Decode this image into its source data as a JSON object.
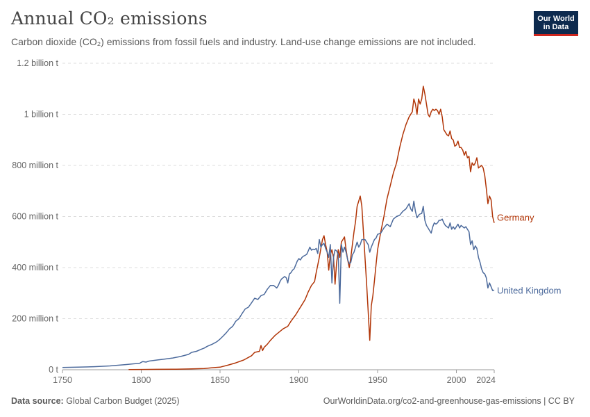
{
  "header": {
    "title": "Annual CO₂ emissions",
    "subtitle": "Carbon dioxide (CO₂) emissions from fossil fuels and industry. Land-use change emissions are not included.",
    "logo_line1": "Our World",
    "logo_line2": "in Data"
  },
  "footer": {
    "source_label": "Data source:",
    "source_value": "Global Carbon Budget (2025)",
    "url": "OurWorldinData.org/co2-and-greenhouse-gas-emissions | CC BY"
  },
  "chart_data": {
    "type": "line",
    "x_ticks": [
      1750,
      1800,
      1850,
      1900,
      1950,
      2000,
      2024
    ],
    "y_ticks": [
      0,
      200000000,
      400000000,
      600000000,
      800000000,
      1000000000,
      1200000000
    ],
    "y_tick_labels": [
      "0 t",
      "200 million t",
      "400 million t",
      "600 million t",
      "800 million t",
      "1 billion t",
      "1.2 billion t"
    ],
    "xlim": [
      1750,
      2024
    ],
    "ylim": [
      0,
      1200000000
    ],
    "grid": "horizontal dashed",
    "series": [
      {
        "name": "Germany",
        "color": "#b13507",
        "points": [
          [
            1792,
            0.5
          ],
          [
            1800,
            1
          ],
          [
            1810,
            1.5
          ],
          [
            1820,
            2
          ],
          [
            1830,
            3
          ],
          [
            1840,
            5
          ],
          [
            1845,
            8
          ],
          [
            1850,
            10
          ],
          [
            1855,
            18
          ],
          [
            1860,
            27
          ],
          [
            1865,
            38
          ],
          [
            1870,
            55
          ],
          [
            1872,
            68
          ],
          [
            1875,
            72
          ],
          [
            1876,
            95
          ],
          [
            1877,
            75
          ],
          [
            1878,
            88
          ],
          [
            1880,
            100
          ],
          [
            1882,
            115
          ],
          [
            1885,
            135
          ],
          [
            1890,
            160
          ],
          [
            1893,
            170
          ],
          [
            1895,
            190
          ],
          [
            1898,
            215
          ],
          [
            1900,
            235
          ],
          [
            1902,
            255
          ],
          [
            1904,
            275
          ],
          [
            1906,
            305
          ],
          [
            1908,
            330
          ],
          [
            1910,
            345
          ],
          [
            1911,
            380
          ],
          [
            1912,
            410
          ],
          [
            1913,
            440
          ],
          [
            1914,
            475
          ],
          [
            1915,
            510
          ],
          [
            1916,
            525
          ],
          [
            1917,
            490
          ],
          [
            1918,
            460
          ],
          [
            1919,
            390
          ],
          [
            1920,
            450
          ],
          [
            1921,
            470
          ],
          [
            1922,
            440
          ],
          [
            1923,
            335
          ],
          [
            1924,
            420
          ],
          [
            1925,
            470
          ],
          [
            1926,
            440
          ],
          [
            1927,
            500
          ],
          [
            1928,
            510
          ],
          [
            1929,
            520
          ],
          [
            1930,
            470
          ],
          [
            1931,
            430
          ],
          [
            1932,
            400
          ],
          [
            1933,
            440
          ],
          [
            1934,
            490
          ],
          [
            1935,
            540
          ],
          [
            1936,
            580
          ],
          [
            1937,
            640
          ],
          [
            1938,
            660
          ],
          [
            1939,
            680
          ],
          [
            1940,
            640
          ],
          [
            1943,
            340
          ],
          [
            1944,
            230
          ],
          [
            1945,
            115
          ],
          [
            1946,
            250
          ],
          [
            1947,
            290
          ],
          [
            1948,
            350
          ],
          [
            1949,
            410
          ],
          [
            1950,
            470
          ],
          [
            1952,
            540
          ],
          [
            1954,
            600
          ],
          [
            1956,
            670
          ],
          [
            1958,
            720
          ],
          [
            1960,
            770
          ],
          [
            1962,
            810
          ],
          [
            1964,
            870
          ],
          [
            1966,
            920
          ],
          [
            1968,
            960
          ],
          [
            1970,
            990
          ],
          [
            1972,
            1010
          ],
          [
            1973,
            1060
          ],
          [
            1974,
            1040
          ],
          [
            1975,
            1000
          ],
          [
            1976,
            1060
          ],
          [
            1977,
            1040
          ],
          [
            1978,
            1060
          ],
          [
            1979,
            1110
          ],
          [
            1980,
            1080
          ],
          [
            1981,
            1040
          ],
          [
            1982,
            1000
          ],
          [
            1983,
            990
          ],
          [
            1984,
            1010
          ],
          [
            1985,
            1020
          ],
          [
            1986,
            1015
          ],
          [
            1987,
            1020
          ],
          [
            1988,
            1015
          ],
          [
            1989,
            1000
          ],
          [
            1990,
            1020
          ],
          [
            1991,
            990
          ],
          [
            1992,
            940
          ],
          [
            1993,
            930
          ],
          [
            1994,
            920
          ],
          [
            1995,
            915
          ],
          [
            1996,
            935
          ],
          [
            1997,
            905
          ],
          [
            1998,
            900
          ],
          [
            1999,
            875
          ],
          [
            2000,
            880
          ],
          [
            2001,
            895
          ],
          [
            2002,
            870
          ],
          [
            2003,
            870
          ],
          [
            2004,
            860
          ],
          [
            2005,
            840
          ],
          [
            2006,
            855
          ],
          [
            2007,
            830
          ],
          [
            2008,
            835
          ],
          [
            2009,
            775
          ],
          [
            2010,
            810
          ],
          [
            2011,
            800
          ],
          [
            2012,
            810
          ],
          [
            2013,
            830
          ],
          [
            2014,
            790
          ],
          [
            2015,
            795
          ],
          [
            2016,
            800
          ],
          [
            2017,
            790
          ],
          [
            2018,
            760
          ],
          [
            2019,
            710
          ],
          [
            2020,
            650
          ],
          [
            2021,
            680
          ],
          [
            2022,
            665
          ],
          [
            2023,
            600
          ],
          [
            2024,
            575
          ]
        ]
      },
      {
        "name": "United Kingdom",
        "color": "#4c6a9c",
        "points": [
          [
            1750,
            9
          ],
          [
            1760,
            10
          ],
          [
            1770,
            12
          ],
          [
            1780,
            15
          ],
          [
            1790,
            20
          ],
          [
            1795,
            23
          ],
          [
            1799,
            25
          ],
          [
            1800,
            29
          ],
          [
            1801,
            32
          ],
          [
            1803,
            30
          ],
          [
            1805,
            34
          ],
          [
            1810,
            38
          ],
          [
            1815,
            42
          ],
          [
            1820,
            46
          ],
          [
            1825,
            52
          ],
          [
            1830,
            60
          ],
          [
            1832,
            68
          ],
          [
            1835,
            72
          ],
          [
            1838,
            80
          ],
          [
            1840,
            85
          ],
          [
            1842,
            92
          ],
          [
            1845,
            100
          ],
          [
            1848,
            110
          ],
          [
            1850,
            120
          ],
          [
            1852,
            132
          ],
          [
            1854,
            145
          ],
          [
            1856,
            160
          ],
          [
            1858,
            170
          ],
          [
            1860,
            190
          ],
          [
            1862,
            200
          ],
          [
            1864,
            220
          ],
          [
            1866,
            238
          ],
          [
            1868,
            245
          ],
          [
            1870,
            262
          ],
          [
            1872,
            280
          ],
          [
            1874,
            275
          ],
          [
            1876,
            290
          ],
          [
            1878,
            295
          ],
          [
            1880,
            315
          ],
          [
            1882,
            330
          ],
          [
            1884,
            330
          ],
          [
            1885,
            325
          ],
          [
            1886,
            320
          ],
          [
            1887,
            330
          ],
          [
            1888,
            345
          ],
          [
            1889,
            355
          ],
          [
            1890,
            360
          ],
          [
            1891,
            365
          ],
          [
            1892,
            360
          ],
          [
            1893,
            340
          ],
          [
            1894,
            375
          ],
          [
            1895,
            380
          ],
          [
            1896,
            390
          ],
          [
            1897,
            395
          ],
          [
            1898,
            410
          ],
          [
            1899,
            425
          ],
          [
            1900,
            435
          ],
          [
            1901,
            430
          ],
          [
            1902,
            440
          ],
          [
            1903,
            445
          ],
          [
            1904,
            448
          ],
          [
            1905,
            452
          ],
          [
            1906,
            465
          ],
          [
            1907,
            480
          ],
          [
            1908,
            468
          ],
          [
            1909,
            472
          ],
          [
            1910,
            470
          ],
          [
            1911,
            475
          ],
          [
            1912,
            455
          ],
          [
            1913,
            510
          ],
          [
            1914,
            480
          ],
          [
            1915,
            490
          ],
          [
            1916,
            495
          ],
          [
            1917,
            475
          ],
          [
            1918,
            460
          ],
          [
            1919,
            440
          ],
          [
            1920,
            490
          ],
          [
            1921,
            340
          ],
          [
            1922,
            440
          ],
          [
            1923,
            470
          ],
          [
            1924,
            465
          ],
          [
            1925,
            450
          ],
          [
            1926,
            260
          ],
          [
            1927,
            490
          ],
          [
            1928,
            460
          ],
          [
            1929,
            480
          ],
          [
            1930,
            460
          ],
          [
            1931,
            430
          ],
          [
            1932,
            415
          ],
          [
            1933,
            420
          ],
          [
            1934,
            450
          ],
          [
            1935,
            460
          ],
          [
            1936,
            480
          ],
          [
            1937,
            500
          ],
          [
            1938,
            480
          ],
          [
            1939,
            490
          ],
          [
            1940,
            510
          ],
          [
            1941,
            510
          ],
          [
            1942,
            510
          ],
          [
            1943,
            500
          ],
          [
            1944,
            490
          ],
          [
            1945,
            460
          ],
          [
            1946,
            480
          ],
          [
            1947,
            495
          ],
          [
            1948,
            510
          ],
          [
            1949,
            515
          ],
          [
            1950,
            530
          ],
          [
            1952,
            535
          ],
          [
            1954,
            555
          ],
          [
            1956,
            570
          ],
          [
            1958,
            560
          ],
          [
            1960,
            590
          ],
          [
            1962,
            600
          ],
          [
            1964,
            605
          ],
          [
            1966,
            620
          ],
          [
            1968,
            630
          ],
          [
            1970,
            650
          ],
          [
            1971,
            630
          ],
          [
            1972,
            620
          ],
          [
            1973,
            660
          ],
          [
            1974,
            620
          ],
          [
            1975,
            595
          ],
          [
            1976,
            605
          ],
          [
            1977,
            610
          ],
          [
            1978,
            612
          ],
          [
            1979,
            640
          ],
          [
            1980,
            585
          ],
          [
            1981,
            565
          ],
          [
            1982,
            555
          ],
          [
            1983,
            545
          ],
          [
            1984,
            535
          ],
          [
            1985,
            560
          ],
          [
            1986,
            575
          ],
          [
            1987,
            570
          ],
          [
            1988,
            575
          ],
          [
            1989,
            585
          ],
          [
            1990,
            585
          ],
          [
            1991,
            590
          ],
          [
            1992,
            575
          ],
          [
            1993,
            565
          ],
          [
            1994,
            560
          ],
          [
            1995,
            555
          ],
          [
            1996,
            575
          ],
          [
            1997,
            550
          ],
          [
            1998,
            560
          ],
          [
            1999,
            550
          ],
          [
            2000,
            560
          ],
          [
            2001,
            570
          ],
          [
            2002,
            555
          ],
          [
            2003,
            565
          ],
          [
            2004,
            560
          ],
          [
            2005,
            555
          ],
          [
            2006,
            560
          ],
          [
            2007,
            550
          ],
          [
            2008,
            540
          ],
          [
            2009,
            490
          ],
          [
            2010,
            505
          ],
          [
            2011,
            470
          ],
          [
            2012,
            485
          ],
          [
            2013,
            475
          ],
          [
            2014,
            440
          ],
          [
            2015,
            420
          ],
          [
            2016,
            395
          ],
          [
            2017,
            380
          ],
          [
            2018,
            375
          ],
          [
            2019,
            360
          ],
          [
            2020,
            320
          ],
          [
            2021,
            340
          ],
          [
            2022,
            325
          ],
          [
            2023,
            310
          ],
          [
            2024,
            312
          ]
        ]
      }
    ]
  }
}
